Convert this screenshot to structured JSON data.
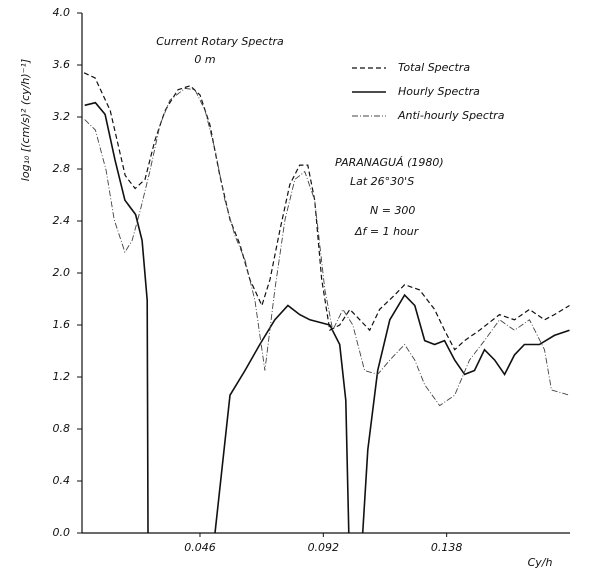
{
  "chart_data": {
    "type": "line",
    "title": "Current Rotary Spectra",
    "subtitle": "0 m",
    "xlabel": "Cy/h",
    "ylabel": "log₁₀ [(cm/s)² (cy/h)⁻¹]",
    "annotations": [
      "PARANAGUÁ (1980)",
      "Lat 26°30'S",
      "N = 300",
      "Δf = 1 hour"
    ],
    "xlim": [
      0.002,
      0.184
    ],
    "ylim": [
      0,
      4
    ],
    "xticks": [
      0.046,
      0.092,
      0.138
    ],
    "yticks": [
      {
        "value": 0,
        "label": "0.0"
      },
      0.4,
      0.8,
      1.2,
      1.6,
      {
        "value": 2,
        "label": "2.0"
      },
      2.4,
      2.8,
      3.2,
      3.6,
      {
        "value": 4,
        "label": "4.0"
      }
    ],
    "grid": false,
    "legend": "upper right",
    "series": [
      {
        "name": "Total Spectra",
        "color": "#111111",
        "linestyle": "dashed",
        "x": [
          0.0028,
          0.0069,
          0.0125,
          0.0181,
          0.0218,
          0.0255,
          0.0292,
          0.033,
          0.0378,
          0.0423,
          0.046,
          0.0497,
          0.0534,
          0.0572,
          0.0609,
          0.0646,
          0.0691,
          0.0721,
          0.0758,
          0.0795,
          0.0832,
          0.0862,
          0.0888,
          0.0914,
          0.0944,
          0.0981,
          0.1019,
          0.1056,
          0.1093,
          0.113,
          0.1186,
          0.1223,
          0.1279,
          0.1335,
          0.1372,
          0.141,
          0.1447,
          0.1503,
          0.1577,
          0.1633,
          0.1689,
          0.1745,
          0.1782,
          0.1838
        ],
        "values": [
          3.54,
          3.5,
          3.25,
          2.75,
          2.65,
          2.72,
          3.02,
          3.25,
          3.41,
          3.44,
          3.37,
          3.14,
          2.75,
          2.41,
          2.22,
          1.95,
          1.75,
          1.95,
          2.33,
          2.68,
          2.83,
          2.83,
          2.56,
          1.95,
          1.56,
          1.6,
          1.72,
          1.64,
          1.56,
          1.72,
          1.83,
          1.91,
          1.87,
          1.72,
          1.56,
          1.41,
          1.48,
          1.56,
          1.68,
          1.64,
          1.72,
          1.64,
          1.68,
          1.75
        ]
      },
      {
        "name": "Hourly Spectra",
        "color": "#111111",
        "linestyle": "solid",
        "x": [
          0.003,
          0.007,
          0.0106,
          0.0143,
          0.018,
          0.022,
          0.0244,
          0.0263,
          0.0266,
          0.0386,
          0.0516,
          0.0572,
          0.0628,
          0.0683,
          0.0739,
          0.0788,
          0.0832,
          0.087,
          0.0907,
          0.0944,
          0.0981,
          0.1004,
          0.1015,
          0.1041,
          0.1067,
          0.1086,
          0.1123,
          0.1168,
          0.1223,
          0.1261,
          0.1298,
          0.1335,
          0.1372,
          0.141,
          0.1447,
          0.1484,
          0.1521,
          0.1559,
          0.1596,
          0.1633,
          0.167,
          0.1726,
          0.1782,
          0.1838
        ],
        "values": [
          3.29,
          3.31,
          3.22,
          2.87,
          2.56,
          2.45,
          2.25,
          1.79,
          0,
          null,
          0,
          1.06,
          1.25,
          1.45,
          1.64,
          1.75,
          1.68,
          1.64,
          1.62,
          1.6,
          1.45,
          1.02,
          0,
          null,
          0,
          0.64,
          1.25,
          1.64,
          1.83,
          1.75,
          1.48,
          1.45,
          1.48,
          1.33,
          1.22,
          1.25,
          1.41,
          1.33,
          1.22,
          1.37,
          1.45,
          1.45,
          1.52,
          1.56
        ]
      },
      {
        "name": "Anti-hourly Spectra",
        "color": "#444444",
        "linestyle": "dashdot",
        "x": [
          0.003,
          0.007,
          0.011,
          0.014,
          0.018,
          0.0207,
          0.0237,
          0.0274,
          0.0311,
          0.0348,
          0.0404,
          0.0441,
          0.0479,
          0.0516,
          0.0553,
          0.059,
          0.0628,
          0.0665,
          0.0702,
          0.0739,
          0.0777,
          0.0814,
          0.0851,
          0.0888,
          0.0926,
          0.0955,
          0.0993,
          0.103,
          0.1074,
          0.1123,
          0.1168,
          0.1223,
          0.1261,
          0.1298,
          0.1354,
          0.141,
          0.1465,
          0.1521,
          0.1577,
          0.1633,
          0.1689,
          0.1745,
          0.1771,
          0.1838
        ],
        "values": [
          3.18,
          3.1,
          2.79,
          2.41,
          2.16,
          2.25,
          2.48,
          2.79,
          3.14,
          3.33,
          3.42,
          3.41,
          3.25,
          2.95,
          2.56,
          2.29,
          2.1,
          1.79,
          1.25,
          1.87,
          2.41,
          2.72,
          2.78,
          2.56,
          1.87,
          1.56,
          1.72,
          1.6,
          1.25,
          1.22,
          1.33,
          1.45,
          1.33,
          1.14,
          0.98,
          1.06,
          1.33,
          1.48,
          1.64,
          1.56,
          1.64,
          1.41,
          1.1,
          1.06
        ]
      }
    ]
  }
}
